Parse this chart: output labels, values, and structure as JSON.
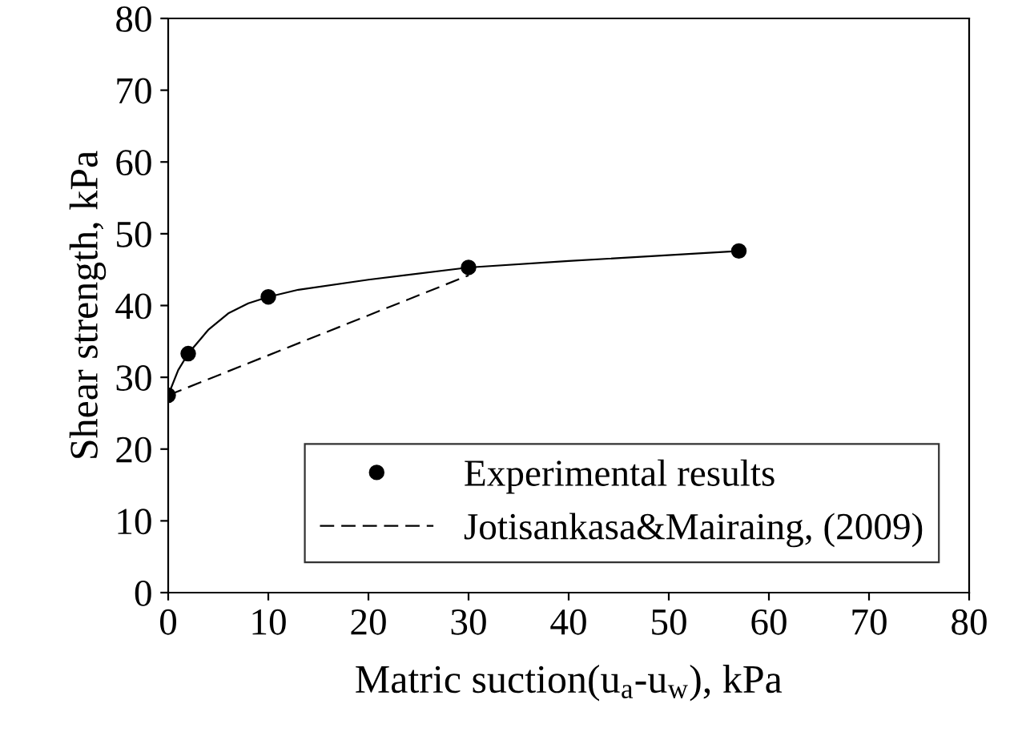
{
  "chart_data": {
    "type": "scatter",
    "xlabel": "Matric suction(u$_{a}$-u$_{w}$), kPa",
    "ylabel": "Shear strength, kPa",
    "xlim": [
      0,
      80
    ],
    "ylim": [
      0,
      80
    ],
    "xticks": [
      0,
      10,
      20,
      30,
      40,
      50,
      60,
      70,
      80
    ],
    "yticks": [
      0,
      10,
      20,
      30,
      40,
      50,
      60,
      70,
      80
    ],
    "grid": false,
    "legend": "bottom right",
    "series": [
      {
        "name": "Experimental results",
        "marker": "circle",
        "color": "#000000",
        "x": [
          0,
          2,
          10,
          30,
          57
        ],
        "values": [
          27.5,
          33.3,
          41.2,
          45.3,
          47.6
        ]
      },
      {
        "type": "line",
        "line_style": "solid",
        "marker": "none",
        "color": "#000000",
        "x": [
          0,
          1,
          2,
          4,
          6,
          8,
          10,
          13,
          20,
          30,
          40,
          57
        ],
        "values": [
          27.5,
          31,
          33.3,
          36.6,
          38.9,
          40.3,
          41.2,
          42.2,
          43.6,
          45.3,
          46.2,
          47.6
        ]
      },
      {
        "name": "Jotisankasa&Mairaing, (2009)",
        "type": "line",
        "line_style": "dashed",
        "marker": "none",
        "color": "#000000",
        "x": [
          0,
          30
        ],
        "values": [
          27.5,
          44.2
        ]
      }
    ]
  }
}
